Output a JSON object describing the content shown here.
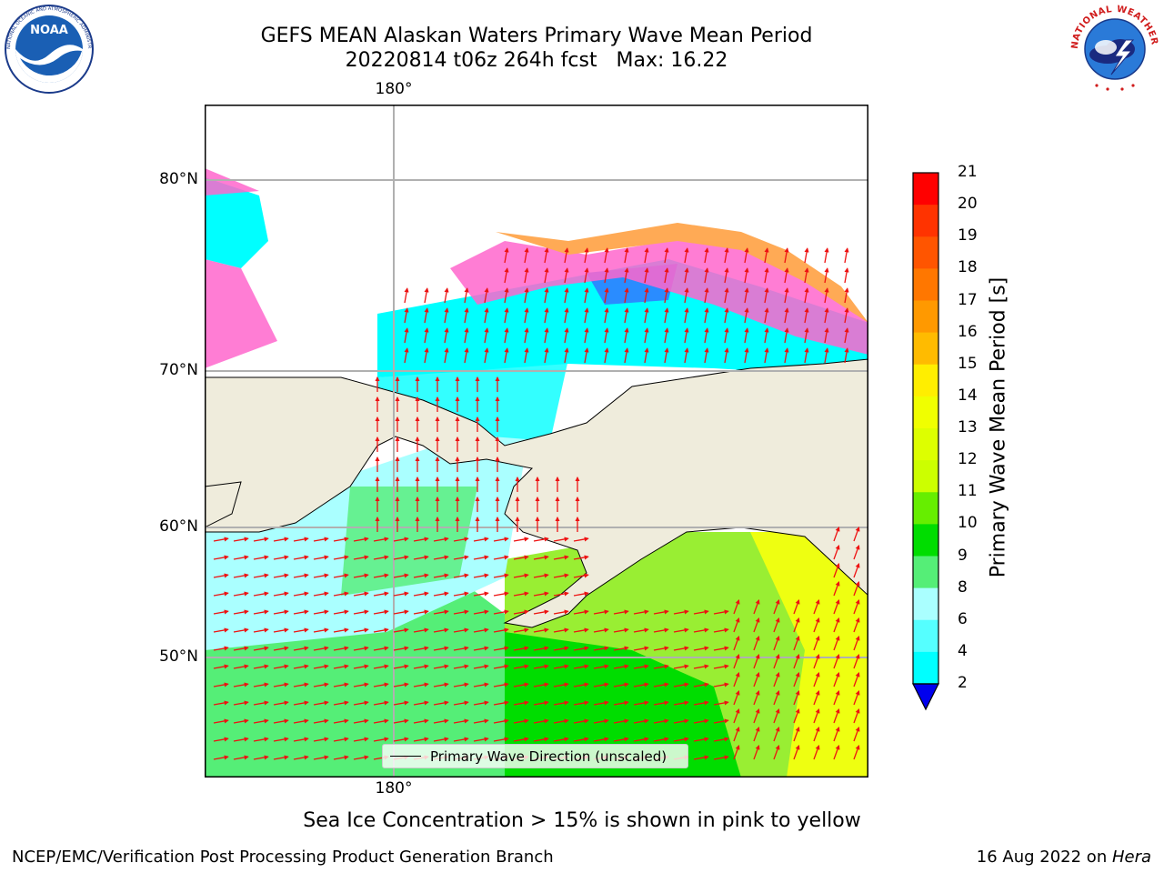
{
  "header": {
    "title_line1": "GEFS MEAN Alaskan Waters Primary Wave Mean Period",
    "title_line2": "20220814 t06z 264h fcst   Max: 16.22"
  },
  "logos": {
    "left": {
      "name": "NOAA",
      "ring_text": "NATIONAL OCEANIC AND ATMOSPHERIC ADMINISTRATION · U.S. DEPARTMENT OF COMMERCE"
    },
    "right": {
      "name": "NATIONAL WEATHER SERVICE"
    }
  },
  "map": {
    "lat_labels": [
      "80°N",
      "70°N",
      "60°N",
      "50°N"
    ],
    "lon_label_top": "180°",
    "lon_label_bottom": "180°",
    "legend_text": "Primary Wave Direction (unscaled)",
    "colors": {
      "land": "#efecdc",
      "ice_pink": "#ff66cc",
      "ice_orange": "#ffaa55",
      "ice_yellow": "#ffe066",
      "arrow": "#ee1111"
    }
  },
  "colorbar": {
    "label": "Primary Wave Mean Period [s]",
    "ticks": [
      "21",
      "20",
      "19",
      "18",
      "17",
      "16",
      "15",
      "14",
      "13",
      "12",
      "11",
      "10",
      "9",
      "8",
      "6",
      "4",
      "2"
    ],
    "colors": [
      "#ff0000",
      "#ff3300",
      "#ff5500",
      "#ff7700",
      "#ff9900",
      "#ffbb00",
      "#ffee00",
      "#f0ff00",
      "#ddff00",
      "#ccff00",
      "#66ee00",
      "#00dd00",
      "#55ee77",
      "#aaffff",
      "#55ffff",
      "#00ffff",
      "#0099ff",
      "#0055ff"
    ],
    "extend_color": "#0000ee"
  },
  "caption": "Sea Ice Concentration > 15% is shown in pink to yellow",
  "footer": {
    "left": "NCEP/EMC/Verification Post Processing Product Generation Branch",
    "right_prefix": "16 Aug 2022 on ",
    "right_machine": "Hera"
  }
}
